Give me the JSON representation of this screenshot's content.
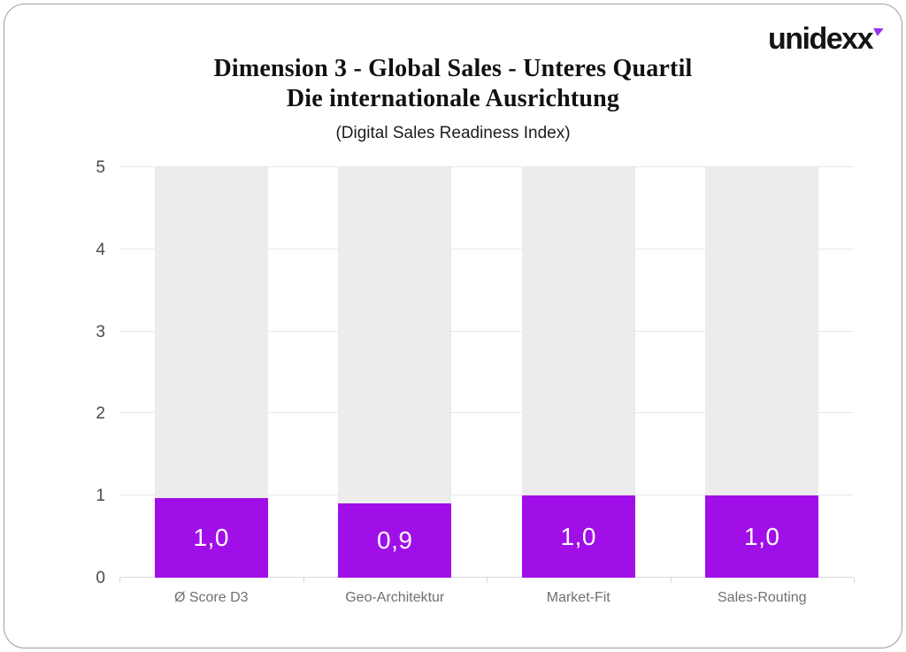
{
  "brand": {
    "logo_text": "unidexx",
    "logo_mark_color": "#9333ea"
  },
  "header": {
    "title_line1": "Dimension 3 - Global Sales - Unteres Quartil",
    "title_line2": "Die internationale Ausrichtung",
    "subtitle": "(Digital Sales Readiness Index)"
  },
  "chart_data": {
    "type": "bar",
    "title": "Dimension 3 - Global Sales - Unteres Quartil / Die internationale Ausrichtung",
    "subtitle": "(Digital Sales Readiness Index)",
    "categories": [
      "Ø Score D3",
      "Geo-Architektur",
      "Market-Fit",
      "Sales-Routing"
    ],
    "values": [
      0.97,
      0.9,
      1.0,
      1.0
    ],
    "value_labels": [
      "1,0",
      "0,9",
      "1,0",
      "1,0"
    ],
    "xlabel": "",
    "ylabel": "",
    "ylim": [
      0,
      5
    ],
    "yticks": [
      0,
      1,
      2,
      3,
      4,
      5
    ],
    "grid": true,
    "legend": false,
    "bar_color": "#a10fe8",
    "background_bar_color": "#ececec",
    "background_bar_max": 5,
    "value_label_color": "#ffffff"
  }
}
